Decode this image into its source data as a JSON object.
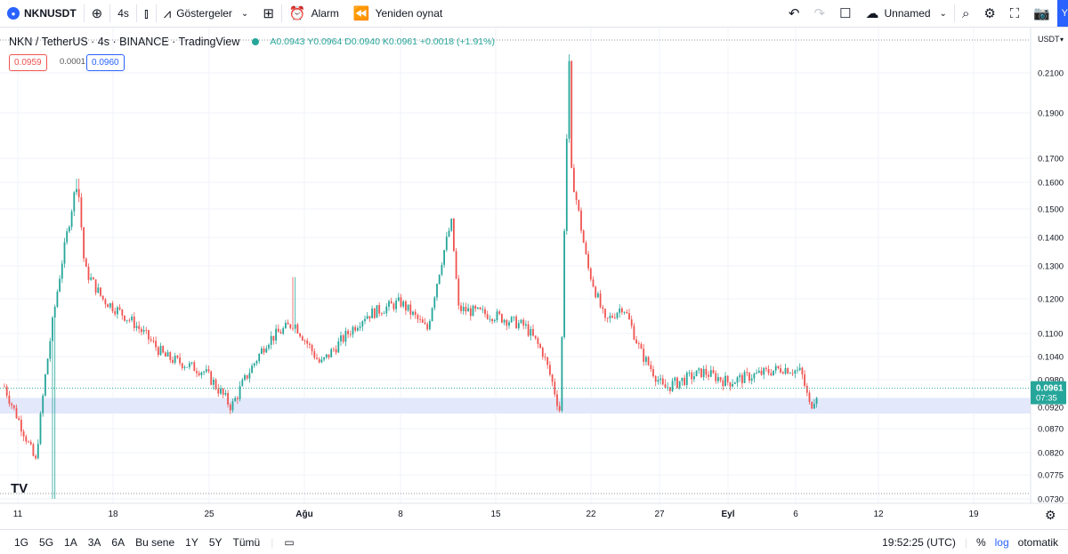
{
  "toolbar": {
    "symbol": "NKNUSDT",
    "interval": "4s",
    "indicators": "Göstergeler",
    "alert": "Alarm",
    "replay": "Yeniden oynat",
    "layout_name": "Unnamed",
    "corner": "Y"
  },
  "legend": {
    "title": "NKN / TetherUS · 4s · BINANCE · TradingView",
    "ohlc": "A0.0943  Y0.0964  D0.0940  K0.0961  +0.0018 (+1.91%)",
    "sell": "0.0959",
    "spread": "0.0001",
    "buy": "0.0960"
  },
  "colors": {
    "up": "#26a69a",
    "down": "#ef5350",
    "accent": "#2962ff",
    "zone": "#e3e8fb"
  },
  "chart_data": {
    "type": "candlestick",
    "y_axis_label": "USDT",
    "y_ticks": [
      "0.2100",
      "0.1900",
      "0.1700",
      "0.1600",
      "0.1500",
      "0.1400",
      "0.1300",
      "0.1200",
      "0.1100",
      "0.1040",
      "0.0980",
      "0.0920",
      "0.0870",
      "0.0820",
      "0.0775",
      "0.0730"
    ],
    "log_scale": true,
    "x_ticks": [
      "11",
      "18",
      "25",
      "Ağu",
      "8",
      "15",
      "22",
      "27",
      "Eyl",
      "6",
      "12",
      "19"
    ],
    "current_price": "0.0961",
    "countdown": "07:35",
    "support_zone": [
      0.0905,
      0.094
    ],
    "key_points": [
      {
        "date": "11",
        "price": 0.0965
      },
      {
        "date": "13",
        "price": 0.08
      },
      {
        "date": "15",
        "price": 0.1615
      },
      {
        "date": "16",
        "price": 0.129
      },
      {
        "date": "18",
        "price": 0.12
      },
      {
        "date": "21",
        "price": 0.113
      },
      {
        "date": "23",
        "price": 0.104
      },
      {
        "date": "25",
        "price": 0.1
      },
      {
        "date": "26",
        "price": 0.092
      },
      {
        "date": "28",
        "price": 0.108
      },
      {
        "date": "30",
        "price": 0.113
      },
      {
        "date": "Ağu",
        "price": 0.102
      },
      {
        "date": "5",
        "price": 0.115
      },
      {
        "date": "8",
        "price": 0.119
      },
      {
        "date": "10",
        "price": 0.111
      },
      {
        "date": "11",
        "price": 0.1455
      },
      {
        "date": "12",
        "price": 0.117
      },
      {
        "date": "15",
        "price": 0.115
      },
      {
        "date": "17",
        "price": 0.112
      },
      {
        "date": "18",
        "price": 0.105
      },
      {
        "date": "19",
        "price": 0.0905
      },
      {
        "date": "20",
        "price": 0.22
      },
      {
        "date": "20",
        "price": 0.164
      },
      {
        "date": "21",
        "price": 0.13
      },
      {
        "date": "22",
        "price": 0.113
      },
      {
        "date": "24",
        "price": 0.118
      },
      {
        "date": "26",
        "price": 0.105
      },
      {
        "date": "28",
        "price": 0.096
      },
      {
        "date": "30",
        "price": 0.1
      },
      {
        "date": "Eyl",
        "price": 0.0975
      },
      {
        "date": "4",
        "price": 0.101
      },
      {
        "date": "5",
        "price": 0.1
      },
      {
        "date": "6",
        "price": 0.092
      },
      {
        "date": "7",
        "price": 0.0961
      }
    ]
  },
  "bottom": {
    "ranges": [
      "1G",
      "5G",
      "1A",
      "3A",
      "6A",
      "Bu sene",
      "1Y",
      "5Y",
      "Tümü"
    ],
    "time": "19:52:25 (UTC)",
    "percent": "%",
    "log": "log",
    "auto": "otomatik"
  }
}
